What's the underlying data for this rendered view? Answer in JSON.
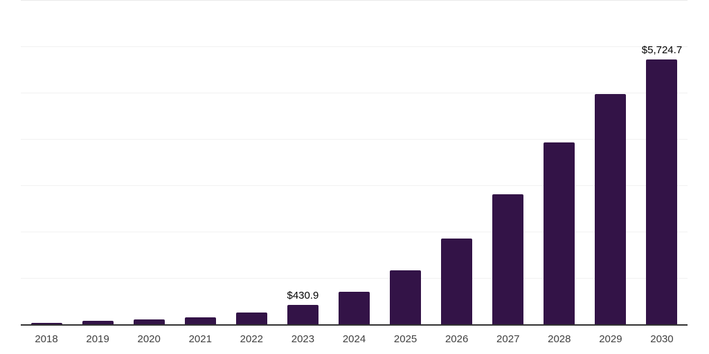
{
  "chart_data": {
    "type": "bar",
    "title": "",
    "xlabel": "",
    "ylabel": "",
    "categories": [
      "2018",
      "2019",
      "2020",
      "2021",
      "2022",
      "2023",
      "2024",
      "2025",
      "2026",
      "2027",
      "2028",
      "2029",
      "2030"
    ],
    "values": [
      48,
      92,
      116,
      157,
      265,
      430.9,
      716,
      1178,
      1863,
      2817,
      3934,
      4978,
      5724.7
    ],
    "point_labels": {
      "2023": "$430.9",
      "2030": "$5,724.7"
    },
    "ylim": [
      0,
      7000
    ],
    "grid_step": 1000,
    "grid": "horizontal",
    "legend": "none",
    "colors": {
      "bar": "#331347",
      "axis": "#333333",
      "gridline": "#f1f1f1",
      "top_gridline": "#e9e9e9",
      "tick_label": "#404040",
      "data_label": "#000000",
      "background": "#ffffff"
    }
  }
}
